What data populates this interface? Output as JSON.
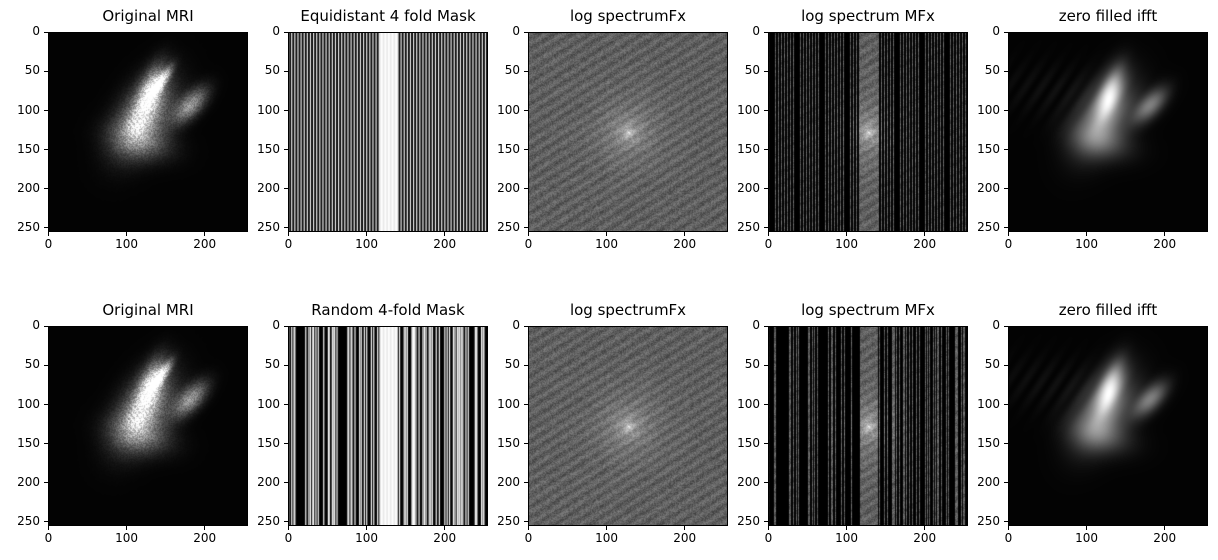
{
  "figure": {
    "rows": [
      {
        "panels": [
          {
            "title": "Original MRI",
            "kind": "mri"
          },
          {
            "title": "Equidistant 4 fold Mask",
            "kind": "mask-equidistant"
          },
          {
            "title": "log spectrumFx",
            "kind": "spectrum"
          },
          {
            "title": "log spectrum MFx",
            "kind": "masked-spectrum-equidistant"
          },
          {
            "title": "zero filled ifft",
            "kind": "ifft-equidistant"
          }
        ]
      },
      {
        "panels": [
          {
            "title": "Original MRI",
            "kind": "mri"
          },
          {
            "title": "Random 4-fold Mask",
            "kind": "mask-random"
          },
          {
            "title": "log spectrumFx",
            "kind": "spectrum"
          },
          {
            "title": "log spectrum MFx",
            "kind": "masked-spectrum-random"
          },
          {
            "title": "zero filled ifft",
            "kind": "ifft-random"
          }
        ]
      }
    ],
    "y_ticks": [
      "0",
      "50",
      "100",
      "150",
      "200",
      "250"
    ],
    "x_ticks": [
      "0",
      "100",
      "200"
    ],
    "image_size": 256
  }
}
